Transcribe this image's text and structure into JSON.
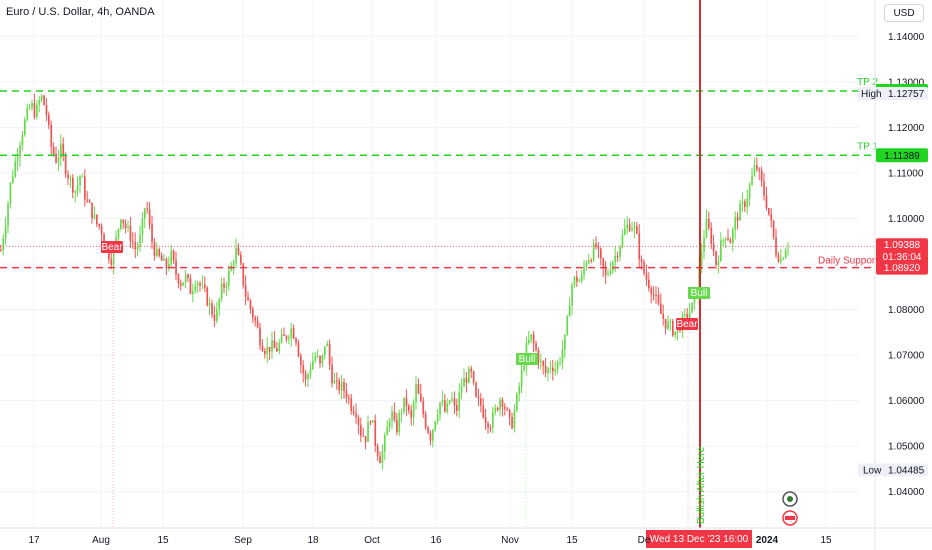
{
  "header": {
    "title": "Euro / U.S. Dollar, 4h, OANDA",
    "currency": "USD"
  },
  "colors": {
    "up": "#26a69a",
    "up_bright": "#66d94d",
    "down": "#ef5350",
    "tp": "#22d422",
    "support": "#f23645",
    "cursor": "#d32f2f"
  },
  "chart_data": {
    "type": "candlestick",
    "ylim": [
      1.032,
      1.148
    ],
    "yticks": [
      "1.14000",
      "1.13000",
      "1.12000",
      "1.11000",
      "1.10000",
      "1.09000",
      "1.08000",
      "1.07000",
      "1.06000",
      "1.05000",
      "1.04000"
    ],
    "xticks": [
      "17",
      "Aug",
      "15",
      "Sep",
      "18",
      "Oct",
      "16",
      "Nov",
      "15",
      "De",
      "2024",
      "15"
    ],
    "levels": [
      {
        "name": "TP 2",
        "value": 1.128,
        "label": "1.12800"
      },
      {
        "name": "TP 1",
        "value": 1.11389,
        "label": "1.11389"
      },
      {
        "name": "Daily Support",
        "value": 1.0892,
        "label": "1.08920"
      }
    ],
    "high": {
      "name": "High",
      "label": "1.12757"
    },
    "low": {
      "name": "Low",
      "label": "1.04485"
    },
    "last": {
      "label": "1.09388",
      "countdown": "01:36:04"
    },
    "cursor_label": "Wed 13 Dec '23   16:00",
    "vertical_annotation": "Bullish After Here",
    "markers": [
      {
        "text": "Bear",
        "kind": "bear"
      },
      {
        "text": "Bull",
        "kind": "bull"
      },
      {
        "text": "Bull",
        "kind": "bull"
      },
      {
        "text": "Bear",
        "kind": "bear"
      }
    ],
    "trend": [
      [
        0,
        1.093
      ],
      [
        5,
        1.1
      ],
      [
        10,
        1.108
      ],
      [
        15,
        1.113
      ],
      [
        20,
        1.118
      ],
      [
        25,
        1.122
      ],
      [
        30,
        1.125
      ],
      [
        35,
        1.123
      ],
      [
        40,
        1.127
      ],
      [
        45,
        1.124
      ],
      [
        50,
        1.116
      ],
      [
        55,
        1.113
      ],
      [
        60,
        1.115
      ],
      [
        65,
        1.111
      ],
      [
        70,
        1.108
      ],
      [
        75,
        1.106
      ],
      [
        80,
        1.11
      ],
      [
        85,
        1.104
      ],
      [
        90,
        1.102
      ],
      [
        95,
        1.099
      ],
      [
        100,
        1.098
      ],
      [
        105,
        1.094
      ],
      [
        110,
        1.091
      ],
      [
        115,
        1.095
      ],
      [
        120,
        1.101
      ],
      [
        125,
        1.098
      ],
      [
        130,
        1.096
      ],
      [
        135,
        1.093
      ],
      [
        140,
        1.096
      ],
      [
        145,
        1.104
      ],
      [
        150,
        1.096
      ],
      [
        155,
        1.092
      ],
      [
        160,
        1.091
      ],
      [
        165,
        1.089
      ],
      [
        170,
        1.092
      ],
      [
        175,
        1.088
      ],
      [
        180,
        1.086
      ],
      [
        185,
        1.087
      ],
      [
        190,
        1.084
      ],
      [
        195,
        1.087
      ],
      [
        200,
        1.085
      ],
      [
        205,
        1.083
      ],
      [
        210,
        1.08
      ],
      [
        215,
        1.078
      ],
      [
        220,
        1.084
      ],
      [
        225,
        1.086
      ],
      [
        230,
        1.089
      ],
      [
        235,
        1.093
      ],
      [
        240,
        1.089
      ],
      [
        245,
        1.083
      ],
      [
        250,
        1.08
      ],
      [
        255,
        1.077
      ],
      [
        260,
        1.073
      ],
      [
        265,
        1.071
      ],
      [
        270,
        1.072
      ],
      [
        275,
        1.071
      ],
      [
        280,
        1.073
      ],
      [
        285,
        1.074
      ],
      [
        290,
        1.076
      ],
      [
        295,
        1.074
      ],
      [
        300,
        1.068
      ],
      [
        305,
        1.064
      ],
      [
        310,
        1.068
      ],
      [
        315,
        1.07
      ],
      [
        320,
        1.067
      ],
      [
        325,
        1.074
      ],
      [
        330,
        1.066
      ],
      [
        335,
        1.063
      ],
      [
        340,
        1.063
      ],
      [
        345,
        1.062
      ],
      [
        350,
        1.059
      ],
      [
        355,
        1.058
      ],
      [
        360,
        1.053
      ],
      [
        365,
        1.052
      ],
      [
        370,
        1.057
      ],
      [
        375,
        1.05
      ],
      [
        380,
        1.047
      ],
      [
        385,
        1.052
      ],
      [
        390,
        1.058
      ],
      [
        395,
        1.053
      ],
      [
        400,
        1.058
      ],
      [
        405,
        1.06
      ],
      [
        410,
        1.055
      ],
      [
        415,
        1.063
      ],
      [
        420,
        1.059
      ],
      [
        425,
        1.055
      ],
      [
        430,
        1.052
      ],
      [
        435,
        1.057
      ],
      [
        440,
        1.06
      ],
      [
        445,
        1.057
      ],
      [
        450,
        1.061
      ],
      [
        455,
        1.057
      ],
      [
        460,
        1.063
      ],
      [
        465,
        1.065
      ],
      [
        470,
        1.066
      ],
      [
        475,
        1.06
      ],
      [
        480,
        1.059
      ],
      [
        485,
        1.056
      ],
      [
        490,
        1.055
      ],
      [
        495,
        1.058
      ],
      [
        500,
        1.061
      ],
      [
        505,
        1.058
      ],
      [
        510,
        1.054
      ],
      [
        515,
        1.059
      ],
      [
        520,
        1.065
      ],
      [
        525,
        1.071
      ],
      [
        530,
        1.074
      ],
      [
        535,
        1.071
      ],
      [
        540,
        1.068
      ],
      [
        545,
        1.066
      ],
      [
        550,
        1.068
      ],
      [
        555,
        1.067
      ],
      [
        560,
        1.07
      ],
      [
        565,
        1.074
      ],
      [
        570,
        1.085
      ],
      [
        575,
        1.087
      ],
      [
        580,
        1.086
      ],
      [
        585,
        1.091
      ],
      [
        590,
        1.092
      ],
      [
        595,
        1.094
      ],
      [
        600,
        1.09
      ],
      [
        605,
        1.087
      ],
      [
        610,
        1.09
      ],
      [
        615,
        1.092
      ],
      [
        620,
        1.095
      ],
      [
        625,
        1.098
      ],
      [
        630,
        1.099
      ],
      [
        635,
        1.097
      ],
      [
        640,
        1.09
      ],
      [
        645,
        1.087
      ],
      [
        650,
        1.085
      ],
      [
        655,
        1.082
      ],
      [
        660,
        1.079
      ],
      [
        665,
        1.077
      ],
      [
        670,
        1.076
      ],
      [
        675,
        1.075
      ],
      [
        680,
        1.077
      ],
      [
        685,
        1.078
      ],
      [
        690,
        1.08
      ],
      [
        695,
        1.082
      ],
      [
        700,
        1.092
      ],
      [
        705,
        1.099
      ],
      [
        710,
        1.096
      ],
      [
        715,
        1.09
      ],
      [
        720,
        1.094
      ],
      [
        725,
        1.097
      ],
      [
        730,
        1.095
      ],
      [
        735,
        1.1
      ],
      [
        740,
        1.102
      ],
      [
        745,
        1.104
      ],
      [
        750,
        1.108
      ],
      [
        755,
        1.112
      ],
      [
        760,
        1.108
      ],
      [
        765,
        1.104
      ],
      [
        770,
        1.099
      ],
      [
        775,
        1.093
      ],
      [
        780,
        1.091
      ],
      [
        785,
        1.094
      ],
      [
        788,
        1.0939
      ]
    ]
  }
}
